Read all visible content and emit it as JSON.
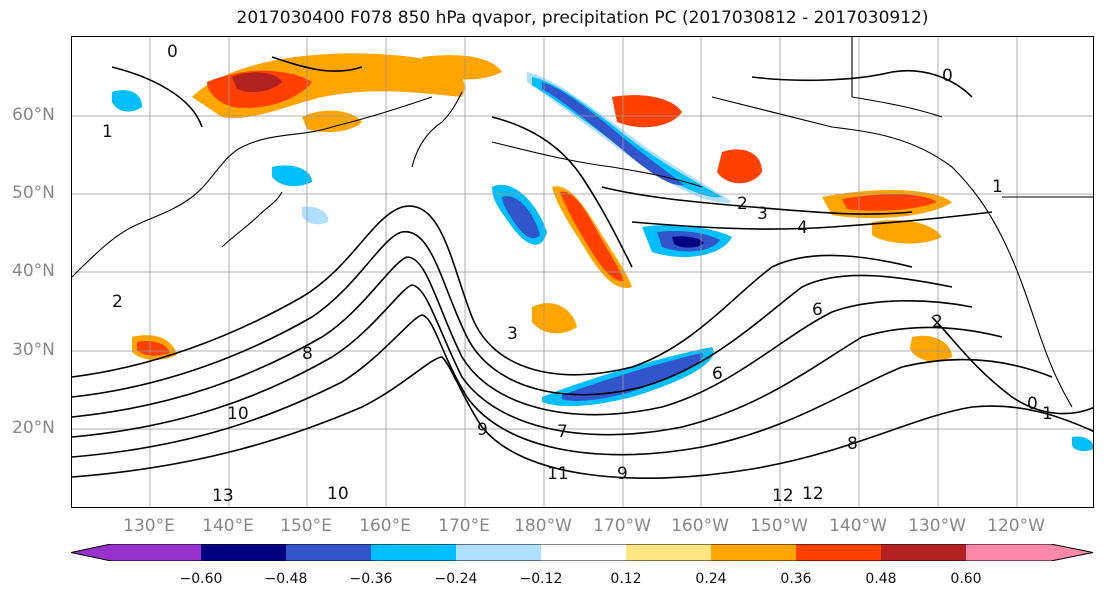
{
  "title": "2017030400 F078 850 hPa qvapor, precipitation PC (2017030812 - 2017030912)",
  "map": {
    "lat_labels": [
      "60°N",
      "50°N",
      "40°N",
      "30°N",
      "20°N"
    ],
    "lon_labels": [
      "130°E",
      "140°E",
      "150°E",
      "160°E",
      "170°E",
      "180°W",
      "170°W",
      "160°W",
      "150°W",
      "140°W",
      "130°W",
      "120°W"
    ],
    "contour_labels": [
      "0",
      "0",
      "1",
      "1",
      "2",
      "3",
      "4",
      "6",
      "8",
      "9",
      "10",
      "11",
      "12",
      "13",
      "2",
      "3",
      "6",
      "7",
      "8",
      "9",
      "0",
      "1",
      "2",
      "10",
      "12"
    ]
  },
  "colorbar": {
    "tick_labels": [
      "−0.60",
      "−0.48",
      "−0.36",
      "−0.24",
      "−0.12",
      "0.12",
      "0.24",
      "0.36",
      "0.48",
      "0.60"
    ],
    "colors": [
      "#9932cc",
      "#000080",
      "#3355cc",
      "#00bfff",
      "#b0e0ff",
      "#ffffff",
      "#ffe680",
      "#ffa500",
      "#ff4000",
      "#b22222",
      "#ff88aa"
    ]
  },
  "styles": {
    "coast_color": "#000000",
    "contour_color": "#000000",
    "grid_color": "#999999",
    "label_color": "#888888"
  }
}
